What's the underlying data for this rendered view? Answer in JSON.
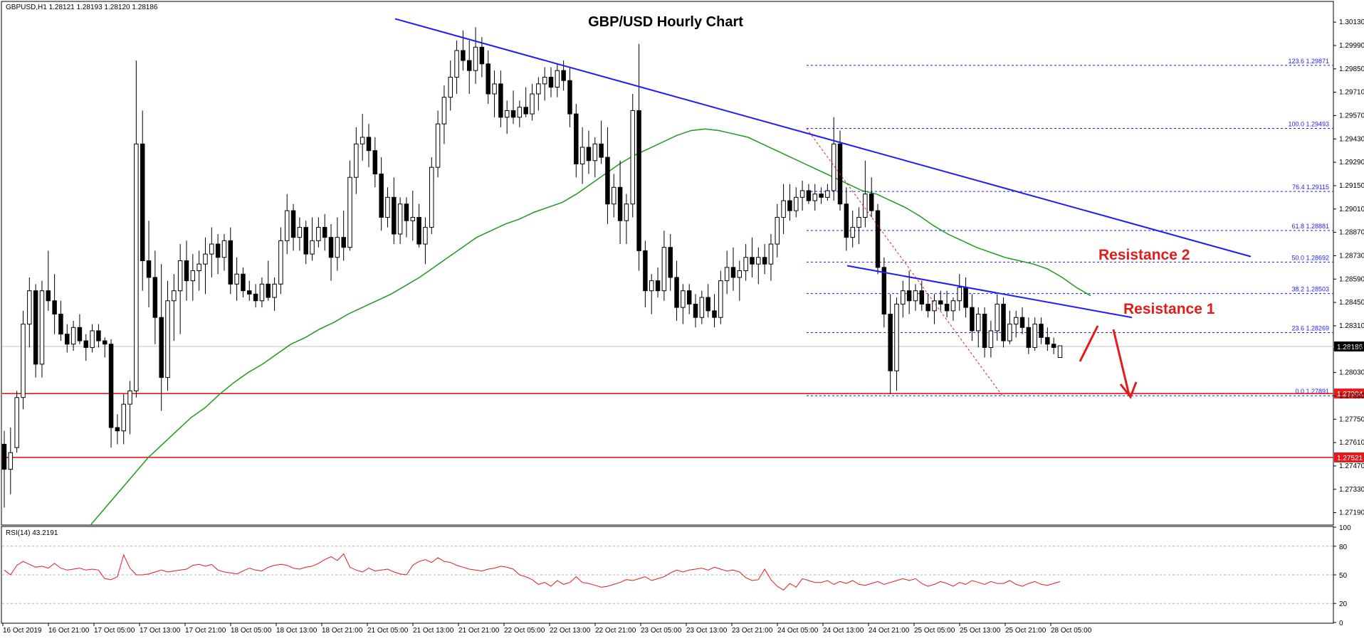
{
  "chart_data": {
    "type": "candlestick",
    "symbol_header": "GBPUSD,H1  1.28121 1.28193 1.28120 1.28186",
    "title": "GBP/USD Hourly Chart",
    "price_axis": {
      "min": 1.2712,
      "max": 1.3025,
      "ticks": [
        "1.30130",
        "1.29990",
        "1.29850",
        "1.29710",
        "1.29570",
        "1.29430",
        "1.29290",
        "1.29150",
        "1.29010",
        "1.28870",
        "1.28730",
        "1.28590",
        "1.28450",
        "1.28310",
        "1.28170",
        "1.28030",
        "1.27890",
        "1.27750",
        "1.27610",
        "1.27470",
        "1.27330",
        "1.27190"
      ],
      "current_price": "1.28186",
      "support_labels": [
        "1.27904",
        "1.27521"
      ]
    },
    "time_axis": [
      "16 Oct 2019",
      "16 Oct 21:00",
      "17 Oct 05:00",
      "17 Oct 13:00",
      "17 Oct 21:00",
      "18 Oct 05:00",
      "18 Oct 13:00",
      "18 Oct 21:00",
      "21 Oct 05:00",
      "21 Oct 13:00",
      "21 Oct 21:00",
      "22 Oct 05:00",
      "22 Oct 13:00",
      "22 Oct 21:00",
      "23 Oct 05:00",
      "23 Oct 13:00",
      "23 Oct 21:00",
      "24 Oct 05:00",
      "24 Oct 13:00",
      "24 Oct 21:00",
      "25 Oct 05:00",
      "25 Oct 13:00",
      "25 Oct 21:00",
      "28 Oct 05:00"
    ],
    "fib_levels": [
      {
        "label": "123.6 1.29871",
        "value": 1.29871
      },
      {
        "label": "100.0 1.29493",
        "value": 1.29493
      },
      {
        "label": "76.4 1.29115",
        "value": 1.29115
      },
      {
        "label": "61.8 1.28881",
        "value": 1.28881
      },
      {
        "label": "50.0 1.28692",
        "value": 1.28692
      },
      {
        "label": "38.2 1.28503",
        "value": 1.28503
      },
      {
        "label": "23.6 1.28269",
        "value": 1.28269
      },
      {
        "label": "0.0 1.27891",
        "value": 1.27891
      }
    ],
    "support_lines": [
      1.27904,
      1.27521
    ],
    "annotations": [
      {
        "text": "Resistance 2"
      },
      {
        "text": "Resistance 1"
      }
    ],
    "rsi": {
      "header": "RSI(14) 43.2191",
      "ticks": [
        "100",
        "80",
        "50",
        "20",
        "0"
      ],
      "levels": [
        80,
        50,
        20
      ],
      "values": [
        55,
        50,
        60,
        64,
        61,
        58,
        59,
        57,
        62,
        57,
        55,
        56,
        57,
        55,
        56,
        55,
        46,
        45,
        48,
        71,
        57,
        50,
        50,
        51,
        53,
        55,
        53,
        54,
        55,
        56,
        60,
        61,
        59,
        61,
        55,
        53,
        52,
        51,
        54,
        57,
        55,
        54,
        58,
        60,
        61,
        60,
        57,
        56,
        58,
        59,
        62,
        66,
        69,
        65,
        72,
        58,
        55,
        53,
        57,
        54,
        55,
        56,
        53,
        51,
        50,
        60,
        64,
        66,
        63,
        68,
        64,
        63,
        60,
        58,
        56,
        55,
        54,
        56,
        57,
        59,
        58,
        56,
        50,
        48,
        45,
        40,
        42,
        38,
        44,
        40,
        42,
        48,
        42,
        41,
        39,
        37,
        38,
        40,
        42,
        45,
        44,
        46,
        48,
        44,
        46,
        48,
        52,
        55,
        53,
        55,
        56,
        57,
        55,
        58,
        56,
        54,
        55,
        53,
        47,
        44,
        45,
        56,
        45,
        38,
        34,
        41,
        37,
        46,
        44,
        42,
        42,
        44,
        40,
        43,
        41,
        44,
        40,
        39,
        41,
        43,
        40,
        42,
        44,
        46,
        44,
        46,
        41,
        38,
        40,
        43,
        41,
        38,
        42,
        40,
        44,
        42,
        40,
        43,
        41,
        41,
        44,
        40,
        38,
        41,
        43,
        40,
        39,
        41,
        43
      ]
    },
    "candles": [
      [
        1.276,
        1.2768,
        1.2722,
        1.2745
      ],
      [
        1.2745,
        1.277,
        1.273,
        1.2755
      ],
      [
        1.2758,
        1.2792,
        1.2755,
        1.2788
      ],
      [
        1.2788,
        1.284,
        1.2781,
        1.2832
      ],
      [
        1.2832,
        1.286,
        1.2818,
        1.2852
      ],
      [
        1.2852,
        1.2856,
        1.28,
        1.2808
      ],
      [
        1.2808,
        1.2858,
        1.28,
        1.2852
      ],
      [
        1.2852,
        1.2876,
        1.284,
        1.2846
      ],
      [
        1.2846,
        1.2862,
        1.2826,
        1.2838
      ],
      [
        1.2838,
        1.2846,
        1.2822,
        1.2826
      ],
      [
        1.2826,
        1.2832,
        1.2815,
        1.282
      ],
      [
        1.282,
        1.2834,
        1.2816,
        1.283
      ],
      [
        1.283,
        1.2838,
        1.282,
        1.2822
      ],
      [
        1.2822,
        1.2826,
        1.281,
        1.2818
      ],
      [
        1.2818,
        1.2832,
        1.2815,
        1.2828
      ],
      [
        1.2828,
        1.2832,
        1.2818,
        1.2822
      ],
      [
        1.2822,
        1.2824,
        1.2812,
        1.282
      ],
      [
        1.282,
        1.2823,
        1.2758,
        1.277
      ],
      [
        1.277,
        1.2778,
        1.276,
        1.2768
      ],
      [
        1.2768,
        1.279,
        1.276,
        1.2784
      ],
      [
        1.2784,
        1.2798,
        1.2766,
        1.2792
      ],
      [
        1.2792,
        1.299,
        1.2788,
        1.294
      ],
      [
        1.294,
        1.296,
        1.2852,
        1.287
      ],
      [
        1.287,
        1.2894,
        1.2842,
        1.286
      ],
      [
        1.286,
        1.2876,
        1.282,
        1.2836
      ],
      [
        1.2836,
        1.2868,
        1.278,
        1.28
      ],
      [
        1.28,
        1.2858,
        1.2792,
        1.2846
      ],
      [
        1.2846,
        1.2862,
        1.2822,
        1.2852
      ],
      [
        1.2852,
        1.288,
        1.2826,
        1.287
      ],
      [
        1.287,
        1.2882,
        1.2846,
        1.2858
      ],
      [
        1.2858,
        1.2874,
        1.2846,
        1.2864
      ],
      [
        1.2864,
        1.2876,
        1.2852,
        1.2868
      ],
      [
        1.2868,
        1.2884,
        1.285,
        1.2874
      ],
      [
        1.2874,
        1.289,
        1.286,
        1.288
      ],
      [
        1.288,
        1.2886,
        1.2862,
        1.2872
      ],
      [
        1.2872,
        1.2886,
        1.2864,
        1.2882
      ],
      [
        1.2882,
        1.289,
        1.285,
        1.2856
      ],
      [
        1.2856,
        1.2872,
        1.2846,
        1.2862
      ],
      [
        1.2862,
        1.2866,
        1.2848,
        1.2852
      ],
      [
        1.2852,
        1.2858,
        1.2846,
        1.285
      ],
      [
        1.285,
        1.2856,
        1.2842,
        1.2846
      ],
      [
        1.2846,
        1.286,
        1.2842,
        1.2856
      ],
      [
        1.2856,
        1.287,
        1.2846,
        1.2848
      ],
      [
        1.2848,
        1.286,
        1.284,
        1.2856
      ],
      [
        1.2856,
        1.289,
        1.285,
        1.2882
      ],
      [
        1.2882,
        1.291,
        1.2874,
        1.29
      ],
      [
        1.29,
        1.2904,
        1.2876,
        1.2884
      ],
      [
        1.2884,
        1.2896,
        1.2876,
        1.289
      ],
      [
        1.289,
        1.2894,
        1.2868,
        1.2874
      ],
      [
        1.2874,
        1.2896,
        1.287,
        1.2882
      ],
      [
        1.2882,
        1.2896,
        1.2878,
        1.289
      ],
      [
        1.289,
        1.2898,
        1.2876,
        1.2884
      ],
      [
        1.2884,
        1.2892,
        1.2858,
        1.2872
      ],
      [
        1.2872,
        1.2896,
        1.2864,
        1.2884
      ],
      [
        1.2884,
        1.29,
        1.287,
        1.2878
      ],
      [
        1.2878,
        1.293,
        1.2876,
        1.292
      ],
      [
        1.292,
        1.295,
        1.291,
        1.294
      ],
      [
        1.294,
        1.2958,
        1.293,
        1.2944
      ],
      [
        1.2944,
        1.2952,
        1.2926,
        1.2936
      ],
      [
        1.2936,
        1.2944,
        1.2914,
        1.2922
      ],
      [
        1.2922,
        1.2932,
        1.2888,
        1.2896
      ],
      [
        1.2896,
        1.2914,
        1.289,
        1.2908
      ],
      [
        1.2908,
        1.292,
        1.288,
        1.2886
      ],
      [
        1.2886,
        1.2908,
        1.288,
        1.2904
      ],
      [
        1.2904,
        1.2908,
        1.2884,
        1.2894
      ],
      [
        1.2894,
        1.2912,
        1.2882,
        1.2896
      ],
      [
        1.2896,
        1.2904,
        1.2878,
        1.288
      ],
      [
        1.288,
        1.2896,
        1.2868,
        1.289
      ],
      [
        1.289,
        1.2932,
        1.2886,
        1.2926
      ],
      [
        1.2926,
        1.296,
        1.292,
        1.2952
      ],
      [
        1.2952,
        1.2975,
        1.294,
        1.2968
      ],
      [
        1.2968,
        1.299,
        1.296,
        1.298
      ],
      [
        1.298,
        1.3002,
        1.297,
        1.2996
      ],
      [
        1.2996,
        1.3008,
        1.2984,
        1.299
      ],
      [
        1.299,
        1.3002,
        1.297,
        1.2984
      ],
      [
        1.2984,
        1.301,
        1.2976,
        1.2998
      ],
      [
        1.2998,
        1.3004,
        1.298,
        1.2988
      ],
      [
        1.2988,
        1.2996,
        1.2964,
        1.297
      ],
      [
        1.297,
        1.2984,
        1.2956,
        1.2976
      ],
      [
        1.2976,
        1.2984,
        1.295,
        1.2956
      ],
      [
        1.2956,
        1.2966,
        1.2946,
        1.296
      ],
      [
        1.296,
        1.2972,
        1.2952,
        1.2956
      ],
      [
        1.2956,
        1.2966,
        1.295,
        1.2962
      ],
      [
        1.2962,
        1.2974,
        1.2956,
        1.2958
      ],
      [
        1.2958,
        1.2976,
        1.2954,
        1.297
      ],
      [
        1.297,
        1.298,
        1.296,
        1.2976
      ],
      [
        1.2976,
        1.2986,
        1.2966,
        1.298
      ],
      [
        1.298,
        1.2986,
        1.2968,
        1.2974
      ],
      [
        1.2974,
        1.2988,
        1.2968,
        1.2984
      ],
      [
        1.2984,
        1.299,
        1.2972,
        1.2978
      ],
      [
        1.2978,
        1.2986,
        1.295,
        1.2958
      ],
      [
        1.2958,
        1.2964,
        1.292,
        1.2928
      ],
      [
        1.2928,
        1.295,
        1.2916,
        1.2938
      ],
      [
        1.2938,
        1.2948,
        1.2922,
        1.293
      ],
      [
        1.293,
        1.2944,
        1.292,
        1.294
      ],
      [
        1.294,
        1.2954,
        1.2928,
        1.2932
      ],
      [
        1.2932,
        1.295,
        1.2892,
        1.2904
      ],
      [
        1.2904,
        1.2922,
        1.2896,
        1.2914
      ],
      [
        1.2914,
        1.293,
        1.288,
        1.2894
      ],
      [
        1.2894,
        1.291,
        1.288,
        1.2904
      ],
      [
        1.2904,
        1.297,
        1.2896,
        1.296
      ],
      [
        1.296,
        1.3,
        1.2864,
        1.2876
      ],
      [
        1.2876,
        1.2882,
        1.2842,
        1.2852
      ],
      [
        1.2852,
        1.2862,
        1.2838,
        1.2858
      ],
      [
        1.2858,
        1.2866,
        1.2848,
        1.2852
      ],
      [
        1.2852,
        1.2888,
        1.2846,
        1.2878
      ],
      [
        1.2878,
        1.2886,
        1.2852,
        1.286
      ],
      [
        1.286,
        1.287,
        1.2834,
        1.2842
      ],
      [
        1.2842,
        1.2856,
        1.2832,
        1.2852
      ],
      [
        1.2852,
        1.2856,
        1.2838,
        1.2844
      ],
      [
        1.2844,
        1.285,
        1.283,
        1.2836
      ],
      [
        1.2836,
        1.2852,
        1.2832,
        1.2848
      ],
      [
        1.2848,
        1.2856,
        1.2836,
        1.284
      ],
      [
        1.284,
        1.285,
        1.283,
        1.2836
      ],
      [
        1.2836,
        1.2864,
        1.2832,
        1.2858
      ],
      [
        1.2858,
        1.2876,
        1.285,
        1.2866
      ],
      [
        1.2866,
        1.2878,
        1.2852,
        1.286
      ],
      [
        1.286,
        1.287,
        1.2846,
        1.2864
      ],
      [
        1.2864,
        1.288,
        1.2858,
        1.2872
      ],
      [
        1.2872,
        1.2884,
        1.286,
        1.2868
      ],
      [
        1.2868,
        1.2878,
        1.2856,
        1.2872
      ],
      [
        1.2872,
        1.288,
        1.2862,
        1.2868
      ],
      [
        1.2868,
        1.2886,
        1.2858,
        1.288
      ],
      [
        1.288,
        1.2904,
        1.2872,
        1.2896
      ],
      [
        1.2896,
        1.2916,
        1.2886,
        1.2906
      ],
      [
        1.2906,
        1.2916,
        1.2894,
        1.29
      ],
      [
        1.29,
        1.2914,
        1.2896,
        1.2908
      ],
      [
        1.2908,
        1.2918,
        1.29,
        1.2912
      ],
      [
        1.2912,
        1.2916,
        1.2904,
        1.2906
      ],
      [
        1.2906,
        1.2916,
        1.29,
        1.291
      ],
      [
        1.291,
        1.2914,
        1.2904,
        1.2908
      ],
      [
        1.2908,
        1.2916,
        1.2906,
        1.2912
      ],
      [
        1.2912,
        1.2956,
        1.2906,
        1.294
      ],
      [
        1.294,
        1.2948,
        1.29,
        1.2904
      ],
      [
        1.2904,
        1.2914,
        1.2876,
        1.2884
      ],
      [
        1.2884,
        1.29,
        1.2878,
        1.289
      ],
      [
        1.289,
        1.2902,
        1.288,
        1.2896
      ],
      [
        1.2896,
        1.293,
        1.289,
        1.291
      ],
      [
        1.291,
        1.292,
        1.2896,
        1.29
      ],
      [
        1.29,
        1.2904,
        1.2862,
        1.2866
      ],
      [
        1.2866,
        1.2872,
        1.283,
        1.2838
      ],
      [
        1.2838,
        1.285,
        1.279,
        1.2804
      ],
      [
        1.2804,
        1.2848,
        1.2792,
        1.2844
      ],
      [
        1.2844,
        1.2858,
        1.2836,
        1.2852
      ],
      [
        1.2852,
        1.2864,
        1.2838,
        1.2846
      ],
      [
        1.2846,
        1.2856,
        1.284,
        1.2852
      ],
      [
        1.2852,
        1.2858,
        1.284,
        1.2844
      ],
      [
        1.2844,
        1.285,
        1.2836,
        1.284
      ],
      [
        1.284,
        1.285,
        1.2832,
        1.2846
      ],
      [
        1.2846,
        1.2852,
        1.284,
        1.2844
      ],
      [
        1.2844,
        1.2852,
        1.2836,
        1.284
      ],
      [
        1.284,
        1.2848,
        1.2834,
        1.2846
      ],
      [
        1.2846,
        1.2862,
        1.284,
        1.2854
      ],
      [
        1.2854,
        1.286,
        1.2836,
        1.2842
      ],
      [
        1.2842,
        1.285,
        1.2822,
        1.2828
      ],
      [
        1.2828,
        1.2842,
        1.2818,
        1.2838
      ],
      [
        1.2838,
        1.2842,
        1.2812,
        1.2818
      ],
      [
        1.2818,
        1.2834,
        1.2812,
        1.2828
      ],
      [
        1.2828,
        1.285,
        1.2822,
        1.2844
      ],
      [
        1.2844,
        1.2848,
        1.2818,
        1.2822
      ],
      [
        1.2822,
        1.284,
        1.282,
        1.2832
      ],
      [
        1.2832,
        1.284,
        1.2824,
        1.2836
      ],
      [
        1.2836,
        1.2842,
        1.2826,
        1.283
      ],
      [
        1.283,
        1.2836,
        1.2814,
        1.2818
      ],
      [
        1.2818,
        1.2836,
        1.2816,
        1.2832
      ],
      [
        1.2832,
        1.2836,
        1.282,
        1.2824
      ],
      [
        1.2824,
        1.283,
        1.2816,
        1.282
      ],
      [
        1.282,
        1.2824,
        1.2814,
        1.2818
      ],
      [
        1.2812,
        1.2819,
        1.2812,
        1.2819
      ]
    ],
    "ma_values": [
      1.2712,
      1.2722,
      1.2732,
      1.2742,
      1.2752,
      1.276,
      1.2768,
      1.2776,
      1.2782,
      1.279,
      1.2797,
      1.2803,
      1.2808,
      1.2814,
      1.282,
      1.2824,
      1.2829,
      1.2833,
      1.2838,
      1.2842,
      1.2846,
      1.285,
      1.2855,
      1.286,
      1.2866,
      1.2872,
      1.2878,
      1.2884,
      1.2888,
      1.2892,
      1.2895,
      1.2899,
      1.2902,
      1.2905,
      1.291,
      1.2916,
      1.2922,
      1.2928,
      1.2933,
      1.2937,
      1.2941,
      1.2945,
      1.2948,
      1.2949,
      1.2948,
      1.2946,
      1.2944,
      1.294,
      1.2936,
      1.2932,
      1.2928,
      1.2924,
      1.292,
      1.2916,
      1.2912,
      1.291,
      1.2906,
      1.2902,
      1.2897,
      1.2891,
      1.2886,
      1.2882,
      1.2878,
      1.2875,
      1.2872,
      1.287,
      1.2868,
      1.2865,
      1.286,
      1.2854,
      1.2849
    ]
  }
}
